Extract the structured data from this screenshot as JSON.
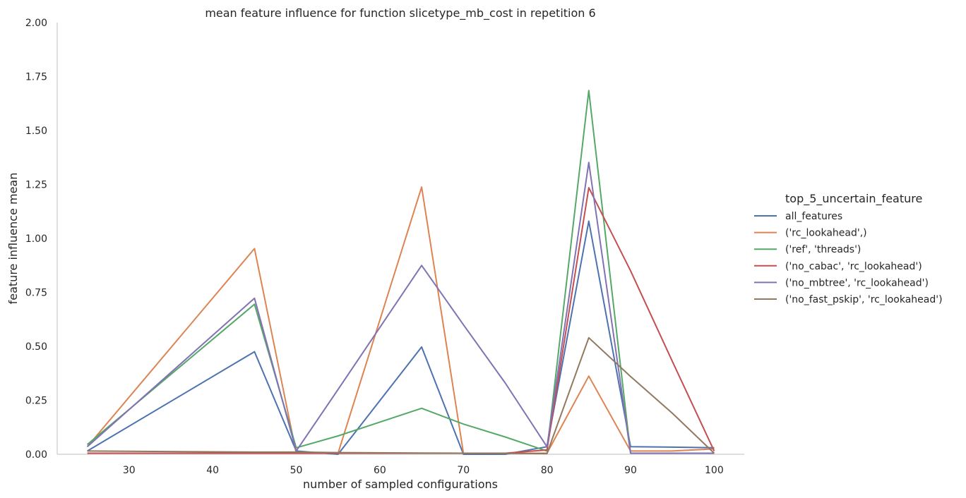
{
  "chart_data": {
    "type": "line",
    "title": "mean feature influence for function slicetype_mb_cost in repetition 6",
    "xlabel": "number of sampled configurations",
    "ylabel": "feature influence mean",
    "xlim": [
      21.4,
      103.6
    ],
    "ylim": [
      0,
      2.0
    ],
    "xticks": [
      30,
      40,
      50,
      60,
      70,
      80,
      90,
      100
    ],
    "xtick_labels": [
      "30",
      "40",
      "50",
      "60",
      "70",
      "80",
      "90",
      "100"
    ],
    "yticks": [
      0,
      0.25,
      0.5,
      0.75,
      1.0,
      1.25,
      1.5,
      1.75,
      2.0
    ],
    "ytick_labels": [
      "0.00",
      "0.25",
      "0.50",
      "0.75",
      "1.00",
      "1.25",
      "1.50",
      "1.75",
      "2.00"
    ],
    "grid": false,
    "legend_title": "top_5_uncertain_feature",
    "legend_position": "right",
    "x": [
      25,
      45,
      50,
      55,
      65,
      70,
      75,
      80,
      85,
      90,
      95,
      100
    ],
    "series": [
      {
        "name": "all_features",
        "color": "#4c72b0",
        "values": [
          0.015,
          0.475,
          0.015,
          0.0,
          0.497,
          0.0,
          0.0,
          0.035,
          1.08,
          0.035,
          0.033,
          0.03
        ]
      },
      {
        "name": "('rc_lookahead',)",
        "color": "#dd8452",
        "values": [
          0.035,
          0.953,
          0.005,
          0.005,
          1.238,
          0.005,
          0.005,
          0.005,
          0.362,
          0.015,
          0.015,
          0.025
        ]
      },
      {
        "name": "('ref', 'threads')",
        "color": "#55a868",
        "values": [
          0.045,
          0.695,
          0.03,
          0.085,
          0.213,
          0.14,
          0.08,
          0.015,
          1.685,
          0.005,
          0.005,
          0.005
        ]
      },
      {
        "name": "('no_cabac', 'rc_lookahead')",
        "color": "#c44e52",
        "values": [
          0.005,
          0.005,
          0.005,
          0.005,
          0.005,
          0.005,
          0.005,
          0.02,
          1.235,
          0.85,
          0.43,
          0.015
        ]
      },
      {
        "name": "('no_mbtree', 'rc_lookahead')",
        "color": "#8172b3",
        "values": [
          0.035,
          0.723,
          0.015,
          0.3,
          0.875,
          0.6,
          0.33,
          0.035,
          1.352,
          0.005,
          0.005,
          0.005
        ]
      },
      {
        "name": "('no_fast_pskip', 'rc_lookahead')",
        "color": "#937860",
        "values": [
          0.015,
          0.01,
          0.01,
          0.008,
          0.006,
          0.005,
          0.004,
          0.003,
          0.54,
          0.36,
          0.19,
          0.005
        ]
      }
    ]
  }
}
